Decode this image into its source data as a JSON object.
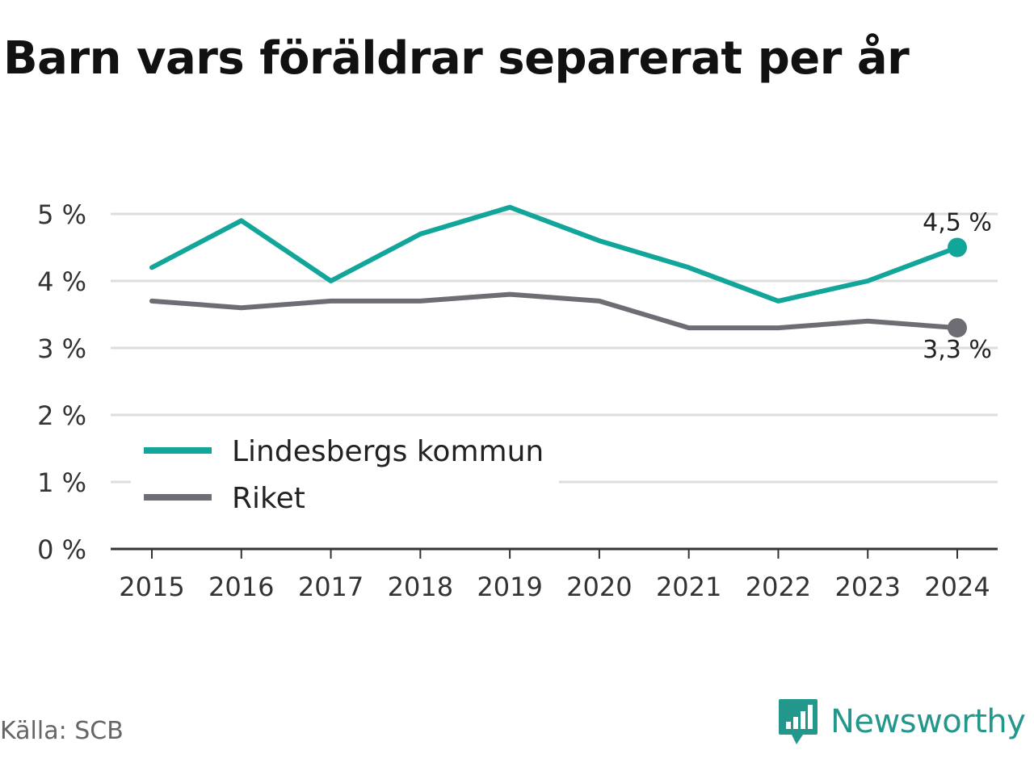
{
  "title": "Barn vars föräldrar separerat per år",
  "source": "Källa: SCB",
  "brand": {
    "name": "Newsworthy",
    "color": "#23978b",
    "icon": "chart-bubble-icon"
  },
  "chart_data": {
    "type": "line",
    "title": "Barn vars föräldrar separerat per år",
    "xlabel": "",
    "ylabel": "",
    "x": [
      "2015",
      "2016",
      "2017",
      "2018",
      "2019",
      "2020",
      "2021",
      "2022",
      "2023",
      "2024"
    ],
    "ylim": [
      0,
      5
    ],
    "yticks": [
      "0 %",
      "1 %",
      "2 %",
      "3 %",
      "4 %",
      "5 %"
    ],
    "grid": true,
    "legend_position": "bottom-left",
    "series": [
      {
        "name": "Lindesbergs kommun",
        "color": "#12a59a",
        "values": [
          4.2,
          4.9,
          4.0,
          4.7,
          5.1,
          4.6,
          4.2,
          3.7,
          4.0,
          4.5
        ],
        "end_label": "4,5 %"
      },
      {
        "name": "Riket",
        "color": "#6e6d74",
        "values": [
          3.7,
          3.6,
          3.7,
          3.7,
          3.8,
          3.7,
          3.3,
          3.3,
          3.4,
          3.3
        ],
        "end_label": "3,3 %"
      }
    ]
  }
}
